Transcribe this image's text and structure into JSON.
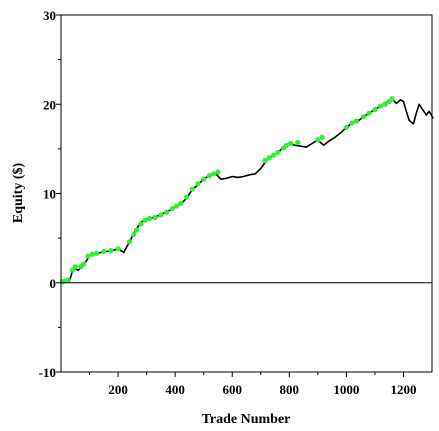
{
  "chart_data": {
    "type": "line",
    "title": "",
    "xlabel": "Trade Number",
    "ylabel": "Equity ($)",
    "xlim": [
      0,
      1300
    ],
    "ylim": [
      -10,
      30
    ],
    "x_ticks": [
      200,
      400,
      600,
      800,
      1000,
      1200
    ],
    "y_ticks": [
      -10,
      0,
      10,
      20,
      30
    ],
    "grid": false,
    "legend": "none",
    "colors": {
      "equity_line": "#000000",
      "new_high_marker": "#33ee33"
    },
    "series": [
      {
        "style": "line",
        "color": "#000000",
        "x": [
          0,
          15,
          30,
          40,
          50,
          60,
          80,
          100,
          120,
          140,
          160,
          180,
          200,
          220,
          240,
          260,
          280,
          300,
          320,
          340,
          360,
          380,
          400,
          420,
          440,
          460,
          480,
          500,
          520,
          540,
          560,
          580,
          600,
          620,
          640,
          660,
          680,
          700,
          720,
          740,
          760,
          780,
          800,
          820,
          840,
          860,
          880,
          900,
          920,
          940,
          960,
          980,
          1000,
          1020,
          1040,
          1060,
          1080,
          1100,
          1120,
          1140,
          1160,
          1175,
          1190,
          1200,
          1210,
          1220,
          1235,
          1245,
          1255,
          1265,
          1280,
          1290,
          1305
        ],
        "y": [
          0,
          0.1,
          0.2,
          1.3,
          1.6,
          1.4,
          2.0,
          3.0,
          3.2,
          3.4,
          3.5,
          3.6,
          3.8,
          3.4,
          4.6,
          5.8,
          6.8,
          7.1,
          7.3,
          7.5,
          7.8,
          8.1,
          8.5,
          8.8,
          9.5,
          10.4,
          11.0,
          11.6,
          12.0,
          12.3,
          11.6,
          11.7,
          11.9,
          11.8,
          11.9,
          12.1,
          12.2,
          12.8,
          13.7,
          14.2,
          14.6,
          15.2,
          15.6,
          15.4,
          15.3,
          15.2,
          15.6,
          16.0,
          15.4,
          15.9,
          16.3,
          16.8,
          17.4,
          17.9,
          18.1,
          18.6,
          19.0,
          19.4,
          19.8,
          20.2,
          20.6,
          20.1,
          20.5,
          20.3,
          19.2,
          18.2,
          17.8,
          19.0,
          20.0,
          19.5,
          18.8,
          19.2,
          18.4
        ]
      },
      {
        "style": "markers",
        "color": "#33ee33",
        "x": [
          5,
          15,
          25,
          40,
          50,
          70,
          80,
          95,
          110,
          125,
          150,
          175,
          200,
          240,
          255,
          265,
          280,
          295,
          310,
          330,
          350,
          370,
          390,
          405,
          420,
          440,
          460,
          480,
          500,
          520,
          535,
          550,
          715,
          730,
          745,
          760,
          780,
          790,
          805,
          830,
          900,
          915,
          1000,
          1020,
          1035,
          1060,
          1080,
          1100,
          1120,
          1135,
          1150,
          1160
        ],
        "y": [
          0.1,
          0.2,
          0.3,
          1.4,
          1.8,
          1.8,
          2.1,
          3.0,
          3.2,
          3.3,
          3.5,
          3.6,
          3.8,
          4.6,
          5.4,
          5.9,
          6.6,
          7.0,
          7.2,
          7.3,
          7.6,
          7.9,
          8.3,
          8.6,
          8.9,
          9.6,
          10.5,
          11.1,
          11.6,
          12.0,
          12.2,
          12.4,
          13.7,
          14.0,
          14.3,
          14.6,
          15.1,
          15.4,
          15.6,
          15.7,
          16.0,
          16.3,
          17.4,
          17.9,
          18.1,
          18.6,
          19.0,
          19.4,
          19.8,
          20.0,
          20.3,
          20.6
        ]
      }
    ]
  }
}
